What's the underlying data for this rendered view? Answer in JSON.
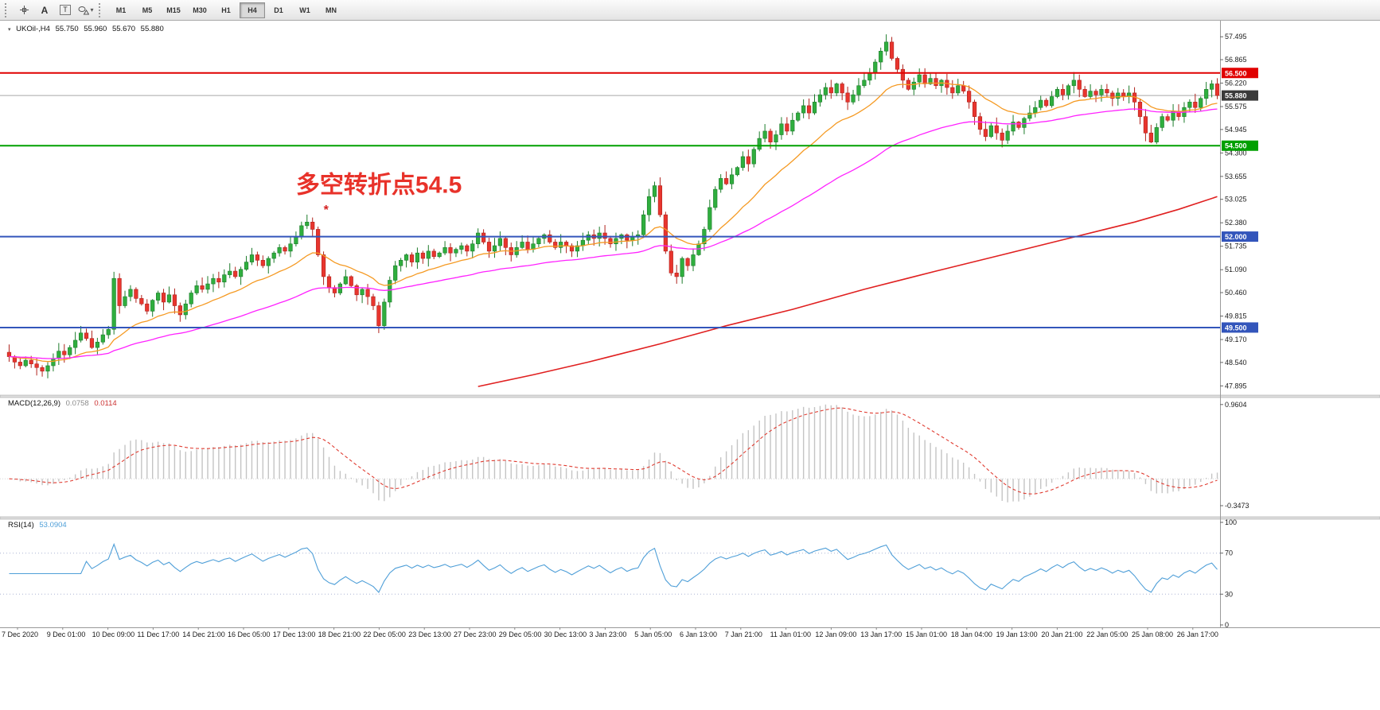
{
  "toolbar": {
    "tools": [
      {
        "id": "crosshair"
      },
      {
        "id": "text-label",
        "label": "A"
      },
      {
        "id": "text-box",
        "label": "T"
      },
      {
        "id": "shapes"
      }
    ],
    "timeframes": [
      "M1",
      "M5",
      "M15",
      "M30",
      "H1",
      "H4",
      "D1",
      "W1",
      "MN"
    ],
    "active_timeframe": "H4"
  },
  "chart": {
    "header": {
      "symbol": "UKOil-,H4",
      "open": "55.750",
      "high": "55.960",
      "low": "55.670",
      "close": "55.880"
    },
    "current_price": {
      "label": "55.880",
      "value": 55.88
    },
    "levels": [
      {
        "label": "56.500",
        "price": 56.5,
        "color": "#e00000"
      },
      {
        "label": "54.500",
        "price": 54.5,
        "color": "#00a000"
      },
      {
        "label": "52.000",
        "price": 52.0,
        "color": "#3355bb"
      },
      {
        "label": "49.500",
        "price": 49.5,
        "color": "#3355bb"
      }
    ],
    "price_axis_labels": [
      "57.495",
      "56.865",
      "56.220",
      "55.575",
      "54.945",
      "54.300",
      "53.655",
      "53.025",
      "52.380",
      "51.735",
      "51.090",
      "50.460",
      "49.815",
      "49.170",
      "48.540",
      "47.895"
    ],
    "annotations": [
      {
        "id": "pivot-note",
        "text": "多空转折点54.5",
        "color": "#e8322a",
        "index": 52,
        "price": 53.2,
        "font_size": 30
      },
      {
        "id": "sell-marker",
        "text": "*",
        "color": "#d42020",
        "index": 57,
        "price": 52.62,
        "font_size": 16
      }
    ]
  },
  "macd_panel": {
    "label": "MACD(12,26,9)",
    "main_value": "0.0758",
    "signal_value": "0.0114",
    "axis_labels": [
      "0.9604",
      "-0.3473"
    ]
  },
  "rsi_panel": {
    "label": "RSI(14)",
    "value": "53.0904",
    "axis_labels": [
      "100",
      "70",
      "30",
      "0"
    ],
    "guide_levels": [
      70,
      30
    ]
  },
  "chart_data": {
    "type": "candlestick",
    "symbol": "UKOil-",
    "timeframe": "H4",
    "price_range": [
      47.75,
      57.85
    ],
    "closes": [
      48.7,
      48.55,
      48.45,
      48.6,
      48.5,
      48.4,
      48.3,
      48.45,
      48.65,
      48.85,
      48.75,
      48.95,
      49.15,
      49.35,
      49.2,
      48.95,
      49.1,
      49.3,
      49.45,
      50.85,
      50.1,
      50.35,
      50.55,
      50.3,
      50.15,
      49.95,
      50.25,
      50.45,
      50.2,
      50.4,
      50.1,
      49.85,
      50.15,
      50.45,
      50.65,
      50.55,
      50.7,
      50.85,
      50.75,
      50.95,
      51.05,
      50.9,
      51.1,
      51.3,
      51.5,
      51.35,
      51.2,
      51.4,
      51.55,
      51.7,
      51.6,
      51.8,
      52.0,
      52.3,
      52.4,
      52.2,
      51.5,
      50.9,
      50.6,
      50.45,
      50.7,
      50.9,
      50.65,
      50.4,
      50.55,
      50.35,
      50.1,
      49.55,
      50.2,
      50.8,
      51.2,
      51.35,
      51.5,
      51.3,
      51.55,
      51.4,
      51.6,
      51.45,
      51.55,
      51.7,
      51.55,
      51.65,
      51.75,
      51.6,
      51.8,
      52.1,
      51.85,
      51.6,
      51.75,
      51.95,
      51.7,
      51.5,
      51.7,
      51.85,
      51.65,
      51.8,
      51.95,
      52.05,
      51.85,
      51.7,
      51.85,
      51.75,
      51.6,
      51.75,
      51.9,
      52.05,
      51.95,
      52.1,
      51.95,
      51.8,
      51.95,
      52.05,
      51.9,
      52.0,
      52.05,
      52.6,
      53.1,
      53.4,
      52.6,
      51.6,
      51.0,
      50.9,
      51.4,
      51.2,
      51.5,
      51.8,
      52.2,
      52.8,
      53.3,
      53.6,
      53.45,
      53.7,
      53.9,
      54.2,
      54.0,
      54.4,
      54.7,
      54.9,
      54.6,
      54.8,
      55.1,
      54.9,
      55.2,
      55.4,
      55.6,
      55.4,
      55.7,
      55.9,
      56.1,
      55.95,
      56.2,
      55.95,
      55.7,
      55.9,
      56.15,
      56.3,
      56.5,
      56.8,
      57.1,
      57.35,
      56.9,
      56.6,
      56.3,
      56.05,
      56.25,
      56.45,
      56.2,
      56.35,
      56.15,
      56.3,
      56.1,
      55.95,
      56.15,
      56.0,
      55.7,
      55.3,
      54.95,
      54.75,
      55.05,
      54.85,
      54.65,
      54.9,
      55.15,
      55.0,
      55.25,
      55.4,
      55.55,
      55.75,
      55.6,
      55.85,
      56.05,
      55.9,
      56.15,
      56.3,
      56.05,
      55.85,
      56.0,
      55.9,
      56.05,
      55.95,
      55.8,
      55.95,
      55.85,
      55.95,
      55.7,
      55.3,
      54.85,
      54.6,
      55.0,
      55.3,
      55.2,
      55.45,
      55.3,
      55.55,
      55.7,
      55.55,
      55.8,
      56.05,
      56.2,
      55.88
    ],
    "ma_fast_period": 18,
    "ma_mid_period": 55,
    "ma_slow_points": [
      [
        85,
        47.88
      ],
      [
        95,
        48.2
      ],
      [
        105,
        48.55
      ],
      [
        118,
        49.05
      ],
      [
        130,
        49.55
      ],
      [
        142,
        50.0
      ],
      [
        155,
        50.55
      ],
      [
        168,
        51.05
      ],
      [
        180,
        51.5
      ],
      [
        192,
        51.95
      ],
      [
        204,
        52.4
      ],
      [
        212,
        52.75
      ],
      [
        219,
        53.1
      ]
    ],
    "macd": {
      "fast": 12,
      "slow": 26,
      "signal": 9,
      "range": [
        -0.45,
        1.02
      ],
      "display_max": 0.9604
    },
    "rsi": {
      "period": 14,
      "range": [
        0,
        100
      ]
    },
    "time_labels": [
      "7 Dec 2020",
      "9 Dec 01:00",
      "10 Dec 09:00",
      "11 Dec 17:00",
      "14 Dec 21:00",
      "16 Dec 05:00",
      "17 Dec 13:00",
      "18 Dec 21:00",
      "22 Dec 05:00",
      "23 Dec 13:00",
      "27 Dec 23:00",
      "29 Dec 05:00",
      "30 Dec 13:00",
      "3 Jan 23:00",
      "5 Jan 05:00",
      "6 Jan 13:00",
      "7 Jan 21:00",
      "11 Jan 01:00",
      "12 Jan 09:00",
      "13 Jan 17:00",
      "15 Jan 01:00",
      "18 Jan 04:00",
      "19 Jan 13:00",
      "20 Jan 21:00",
      "22 Jan 05:00",
      "25 Jan 08:00",
      "26 Jan 17:00"
    ]
  },
  "colors": {
    "bull": "#2fae3e",
    "bull_border": "#1d7c2b",
    "bear": "#e8352e",
    "bear_border": "#b0231d",
    "ma_fast": "#f59a23",
    "ma_mid": "#ff22ff",
    "ma_slow": "#e02020",
    "macd_hist": "#c4c4c4",
    "macd_signal": "#e03c31",
    "rsi_line": "#4f9fd8",
    "rsi_guide": "#aab4d4",
    "current_line": "#a8a8a8",
    "current_badge": "#3a3a3a",
    "axis_text": "#1a1a1a",
    "panel_border": "#9a9a9a"
  }
}
